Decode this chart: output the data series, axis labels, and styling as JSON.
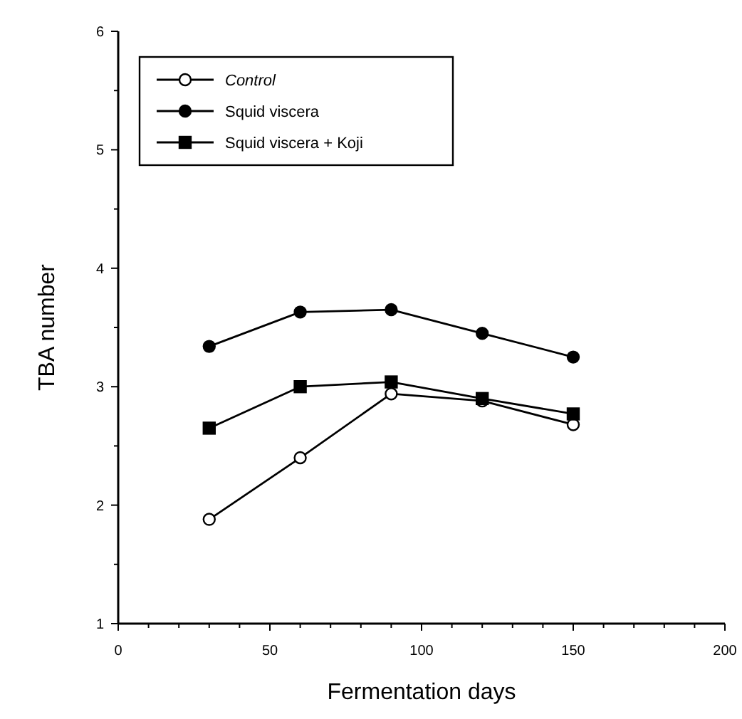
{
  "chart_data": {
    "type": "line",
    "xlabel": "Fermentation days",
    "ylabel": "TBA number",
    "x": [
      30,
      60,
      90,
      120,
      150
    ],
    "xlim": [
      0,
      200
    ],
    "ylim": [
      1,
      6
    ],
    "xticks": [
      0,
      {
        "value": 10,
        "label": null
      },
      {
        "value": 20,
        "label": null
      },
      {
        "value": 30,
        "label": null
      },
      {
        "value": 40,
        "label": null
      },
      50,
      {
        "value": 60,
        "label": null
      },
      {
        "value": 70,
        "label": null
      },
      {
        "value": 80,
        "label": null
      },
      {
        "value": 90,
        "label": null
      },
      100,
      {
        "value": 110,
        "label": null
      },
      {
        "value": 120,
        "label": null
      },
      {
        "value": 130,
        "label": null
      },
      {
        "value": 140,
        "label": null
      },
      150,
      {
        "value": 160,
        "label": null
      },
      {
        "value": 170,
        "label": null
      },
      {
        "value": 180,
        "label": null
      },
      {
        "value": 190,
        "label": null
      },
      200
    ],
    "yticks": [
      1,
      {
        "value": 1.5,
        "label": null
      },
      2,
      {
        "value": 2.5,
        "label": null
      },
      3,
      {
        "value": 3.5,
        "label": null
      },
      4,
      {
        "value": 4.5,
        "label": null
      },
      5,
      {
        "value": 5.5,
        "label": null
      },
      6
    ],
    "grid": false,
    "legend": "top left",
    "line_style": "solid",
    "series": [
      {
        "name": "Control",
        "color": "#000000",
        "marker": "circle",
        "values": [
          1.88,
          2.4,
          2.94,
          2.88,
          2.68
        ]
      },
      {
        "name": "Squid viscera",
        "color": "#000000",
        "marker": "circle",
        "values": [
          3.34,
          3.63,
          3.65,
          3.45,
          3.25
        ]
      },
      {
        "name": "Squid viscera + Koji",
        "color": "#000000",
        "marker": "square",
        "values": [
          2.65,
          3.0,
          3.04,
          2.9,
          2.77
        ]
      }
    ]
  }
}
